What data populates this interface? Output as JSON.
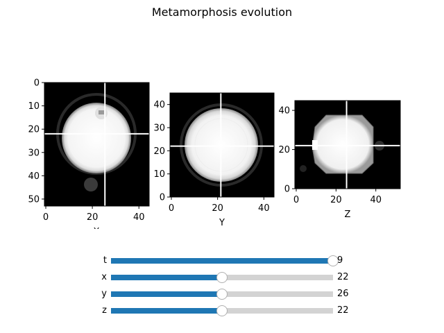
{
  "title": "Metamorphosis evolution",
  "panels": [
    {
      "xlabel": "X",
      "xticks": [
        0,
        20,
        40
      ],
      "yticks": [
        0,
        10,
        20,
        30,
        40,
        50
      ],
      "xlim": [
        0,
        45
      ],
      "ylim": [
        0,
        53
      ],
      "y_inverted": true,
      "crosshair": {
        "x": 26,
        "y": 22
      }
    },
    {
      "xlabel": "Y",
      "xticks": [
        0,
        20,
        40
      ],
      "yticks": [
        0,
        10,
        20,
        30,
        40
      ],
      "xlim": [
        0,
        45
      ],
      "ylim": [
        0,
        45
      ],
      "y_inverted": false,
      "crosshair": {
        "x": 22,
        "y": 22
      }
    },
    {
      "xlabel": "Z",
      "xticks": [
        0,
        20,
        40
      ],
      "yticks": [
        0,
        20,
        40
      ],
      "xlim": [
        0,
        53
      ],
      "ylim": [
        0,
        45
      ],
      "y_inverted": false,
      "crosshair": {
        "x": 26,
        "y": 22
      }
    }
  ],
  "sliders": [
    {
      "label": "t",
      "value": "9",
      "fraction": 1.0
    },
    {
      "label": "x",
      "value": "22",
      "fraction": 0.5
    },
    {
      "label": "y",
      "value": "26",
      "fraction": 0.5
    },
    {
      "label": "z",
      "value": "22",
      "fraction": 0.5
    }
  ],
  "colors": {
    "slider_fill": "#1f77b4",
    "slider_track": "#d3d3d3",
    "image_background": "#000000",
    "image_object": "#ffffff",
    "crosshair": "#ffffff"
  }
}
